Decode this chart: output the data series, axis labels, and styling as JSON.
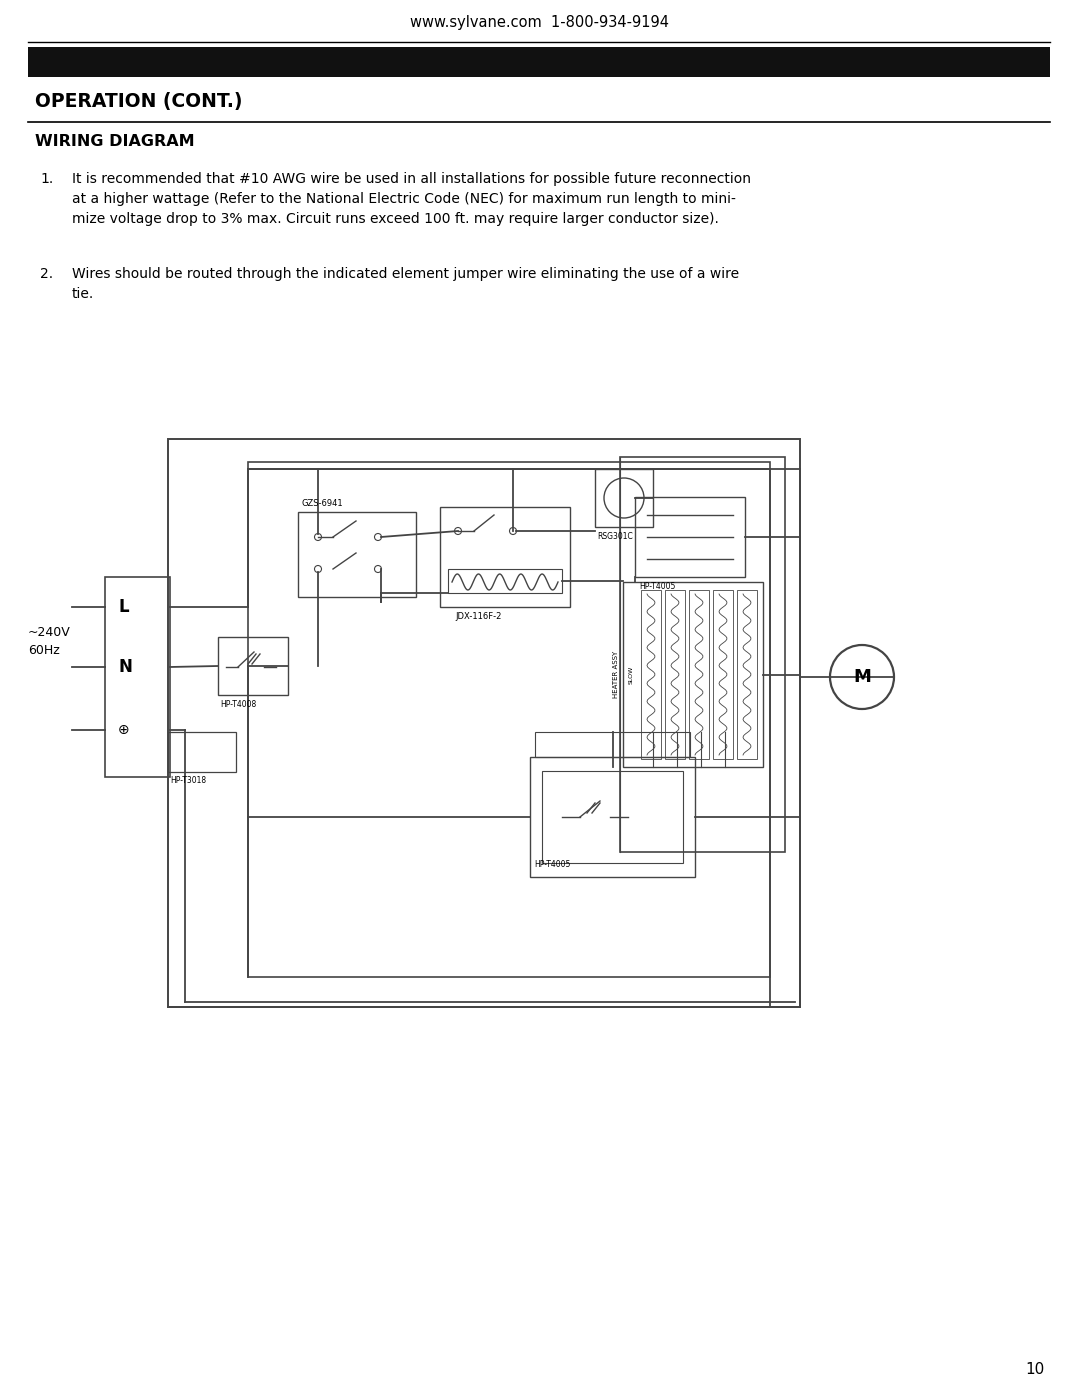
{
  "page_title": "www.sylvane.com  1-800-934-9194",
  "section_title": "OPERATION (CONT.)",
  "subsection_title": "WIRING DIAGRAM",
  "item1_num": "1.",
  "item1_text": "It is recommended that #10 AWG wire be used in all installations for possible future reconnection\nat a higher wattage (Refer to the National Electric Code (NEC) for maximum run length to mini-\nmize voltage drop to 3% max. Circuit runs exceed 100 ft. may require larger conductor size).",
  "item2_num": "2.",
  "item2_text": "Wires should be routed through the indicated element jumper wire eliminating the use of a wire\ntie.",
  "page_number": "10",
  "bg_color": "#ffffff",
  "text_color": "#000000",
  "header_bar_color": "#111111",
  "lc": "#444444",
  "voltage_label": "~240V\n60Hz",
  "label_L": "L",
  "label_N": "N",
  "label_M": "M",
  "comp_GZS": "GZS-6941",
  "comp_JDX": "JDX-116F-2",
  "comp_RSG": "RSG301C",
  "comp_HP_T4005_top": "HP-T4005",
  "comp_HP_T4008": "HP-T4008",
  "comp_HP_T4005_bot": "HP-T4005",
  "comp_HP_T3018": "HP-T3018",
  "comp_HEATER_ASSY": "HEATER ASSY",
  "comp_slow": "SLOW"
}
